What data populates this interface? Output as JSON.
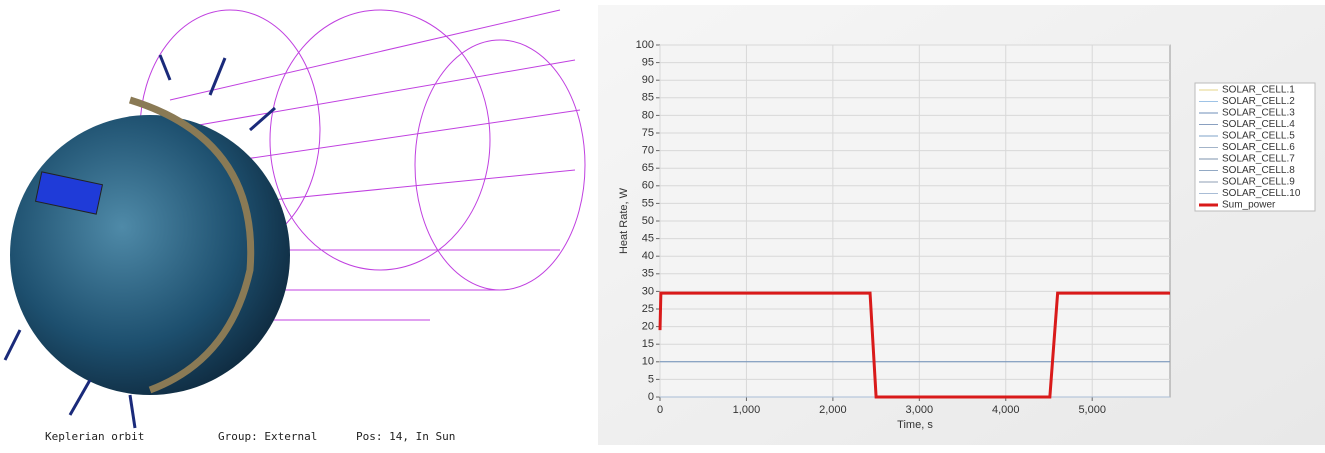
{
  "status_bar": {
    "orbit": "Keplerian orbit",
    "group": "Group: External",
    "position": "Pos: 14, In Sun"
  },
  "chart_data": {
    "type": "line",
    "x": [
      0,
      10,
      2430,
      2500,
      4510,
      4600,
      5900
    ],
    "series": [
      {
        "name": "SOLAR_CELL.1",
        "color": "#e6d58a",
        "values": [
          0,
          0,
          0,
          0,
          0,
          0,
          0
        ]
      },
      {
        "name": "SOLAR_CELL.2",
        "color": "#9ec3e6",
        "values": [
          0,
          0,
          0,
          0,
          0,
          0,
          0
        ]
      },
      {
        "name": "SOLAR_CELL.3",
        "color": "#6f8fb8",
        "values": [
          10,
          10,
          10,
          10,
          10,
          10,
          10
        ]
      },
      {
        "name": "SOLAR_CELL.4",
        "color": "#8aa0c0",
        "values": [
          0,
          0,
          0,
          0,
          0,
          0,
          0
        ]
      },
      {
        "name": "SOLAR_CELL.5",
        "color": "#7fa3c9",
        "values": [
          0,
          0,
          0,
          0,
          0,
          0,
          0
        ]
      },
      {
        "name": "SOLAR_CELL.6",
        "color": "#a3b4c9",
        "values": [
          0,
          0,
          0,
          0,
          0,
          0,
          0
        ]
      },
      {
        "name": "SOLAR_CELL.7",
        "color": "#7d93ad",
        "values": [
          0,
          0,
          0,
          0,
          0,
          0,
          0
        ]
      },
      {
        "name": "SOLAR_CELL.8",
        "color": "#92a9c4",
        "values": [
          0,
          0,
          0,
          0,
          0,
          0,
          0
        ]
      },
      {
        "name": "SOLAR_CELL.9",
        "color": "#8f9fb5",
        "values": [
          0,
          0,
          0,
          0,
          0,
          0,
          0
        ]
      },
      {
        "name": "SOLAR_CELL.10",
        "color": "#a9bdd6",
        "values": [
          0,
          0,
          0,
          0,
          0,
          0,
          0
        ]
      },
      {
        "name": "Sum_power",
        "color": "#d91a1a",
        "values": [
          19,
          29.5,
          29.5,
          0,
          0,
          29.5,
          29.5
        ]
      }
    ],
    "xlabel": "Time, s",
    "ylabel": "Heat Rate, W",
    "xlim": [
      0,
      5900
    ],
    "ylim": [
      0,
      100
    ],
    "xticks": [
      0,
      {
        "value": 1000,
        "label": "1,000"
      },
      {
        "value": 2000,
        "label": "2,000"
      },
      {
        "value": 3000,
        "label": "3,000"
      },
      {
        "value": 4000,
        "label": "4,000"
      },
      {
        "value": 5000,
        "label": "5,000"
      }
    ],
    "yticks": [
      0,
      5,
      10,
      15,
      20,
      25,
      30,
      35,
      40,
      45,
      50,
      55,
      60,
      65,
      70,
      75,
      80,
      85,
      90,
      95,
      100
    ],
    "grid": true
  }
}
